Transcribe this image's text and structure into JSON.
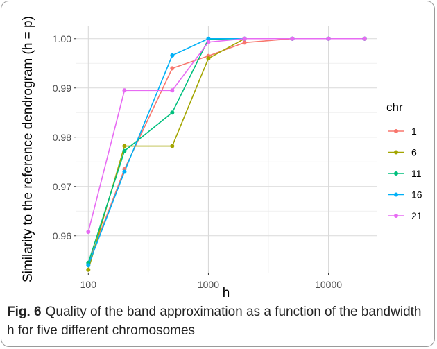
{
  "chart_data": {
    "type": "line",
    "xlabel": "h",
    "ylabel": "Similarity to the reference dendrogram (h = p)",
    "x_scale": "log",
    "xlim": [
      100,
      20000
    ],
    "ylim": [
      0.9525,
      1.0025
    ],
    "x_ticks": [
      100,
      1000,
      10000
    ],
    "x_tick_labels": [
      "100",
      "1000",
      "10000"
    ],
    "y_ticks": [
      0.96,
      0.97,
      0.98,
      0.99,
      1.0
    ],
    "y_tick_labels": [
      "0.96",
      "0.97",
      "0.98",
      "0.99",
      "1.00"
    ],
    "grid": true,
    "legend_title": "chr",
    "legend_position": "right",
    "x": [
      100,
      200,
      500,
      1000,
      2000,
      5000,
      10000,
      20000
    ],
    "series": [
      {
        "name": "1",
        "color": "#F8766D",
        "values": [
          0.9543,
          0.9735,
          0.994,
          0.9965,
          0.9992,
          1.0,
          1.0,
          1.0
        ]
      },
      {
        "name": "6",
        "color": "#A3A500",
        "values": [
          0.9531,
          0.9782,
          0.9782,
          0.996,
          1.0,
          1.0,
          1.0,
          1.0
        ]
      },
      {
        "name": "11",
        "color": "#00BF7D",
        "values": [
          0.9545,
          0.9772,
          0.985,
          0.9999,
          1.0,
          1.0,
          1.0,
          1.0
        ]
      },
      {
        "name": "16",
        "color": "#00B0F6",
        "values": [
          0.954,
          0.973,
          0.9966,
          1.0,
          1.0,
          1.0,
          1.0,
          1.0
        ]
      },
      {
        "name": "21",
        "color": "#E76BF3",
        "values": [
          0.9608,
          0.9895,
          0.9895,
          0.9993,
          1.0,
          1.0,
          1.0,
          1.0
        ]
      }
    ]
  },
  "caption": {
    "label": "Fig. 6",
    "text": "Quality of the band approximation as a function of the bandwidth h for five different chromosomes"
  }
}
